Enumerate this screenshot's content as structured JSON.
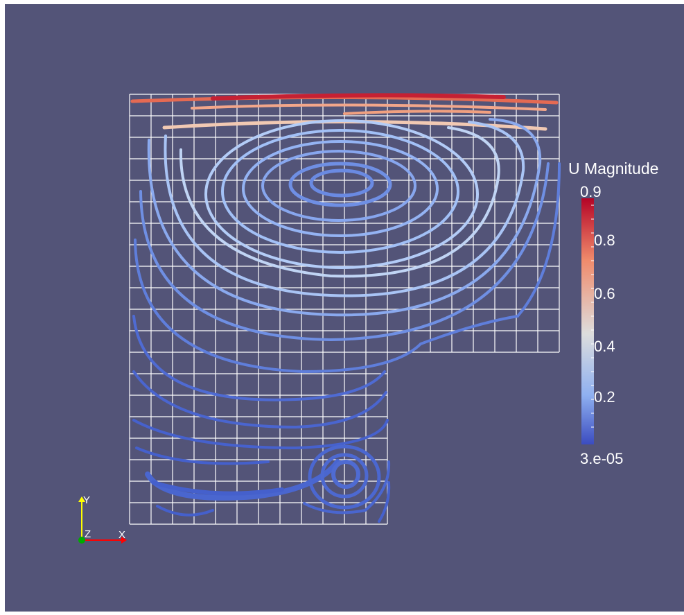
{
  "colorbar": {
    "title": "U Magnitude",
    "max_label": "0.9",
    "min_label": "3.e-05",
    "tick_labels": [
      "0.8",
      "0.6",
      "0.4",
      "0.2"
    ],
    "colors": {
      "top": "#b40426",
      "upper": "#f08a6b",
      "middle": "#dddddd",
      "lower": "#8fb0f0",
      "bottom": "#3b4cc0"
    }
  },
  "orientation_axes": {
    "x_label": "X",
    "y_label": "Y",
    "z_label": "Z",
    "x_color": "#ff0000",
    "y_color": "#ffff00",
    "z_color": "#00aa00"
  },
  "colors": {
    "background": "#535478",
    "grid": "#ffffff"
  }
}
